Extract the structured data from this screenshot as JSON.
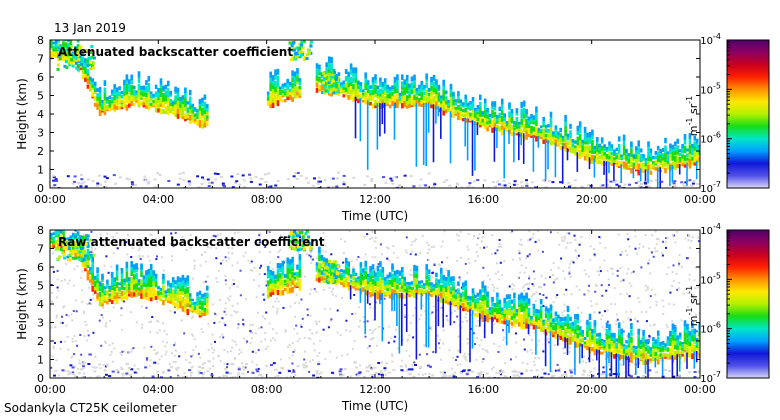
{
  "date": "13 Jan 2019",
  "footer": "Sodankyla CT25K ceilometer",
  "chart_data": [
    {
      "type": "heatmap",
      "title": "Attenuated backscatter coefficient",
      "xlabel": "Time (UTC)",
      "ylabel": "Height (km)",
      "xlim": [
        0,
        24
      ],
      "ylim": [
        0,
        8
      ],
      "xticks": [
        "00:00",
        "04:00",
        "08:00",
        "12:00",
        "16:00",
        "20:00",
        "00:00"
      ],
      "yticks": [
        "0",
        "1",
        "2",
        "3",
        "4",
        "5",
        "6",
        "7",
        "8"
      ],
      "colorbar": {
        "label": "m-1 sr-1",
        "min_exp": -7,
        "max_exp": -4,
        "ticks": [
          "10-7",
          "10-6",
          "10-5",
          "10-4"
        ]
      },
      "features": {
        "cloud_layer_base_km": [
          {
            "t": 0.2,
            "h": 7.2
          },
          {
            "t": 1.0,
            "h": 6.8
          },
          {
            "t": 1.8,
            "h": 4.1
          },
          {
            "t": 3.0,
            "h": 4.7
          },
          {
            "t": 4.5,
            "h": 4.2
          },
          {
            "t": 5.5,
            "h": 3.5
          },
          {
            "t": 10.0,
            "h": 5.5
          },
          {
            "t": 12.0,
            "h": 4.6
          },
          {
            "t": 14.0,
            "h": 4.6
          },
          {
            "t": 16.0,
            "h": 3.4
          },
          {
            "t": 18.0,
            "h": 2.8
          },
          {
            "t": 20.0,
            "h": 1.6
          },
          {
            "t": 22.0,
            "h": 1.0
          },
          {
            "t": 24.0,
            "h": 1.5
          }
        ],
        "noise_background": false
      }
    },
    {
      "type": "heatmap",
      "title": "Raw attenuated backscatter coefficient",
      "xlabel": "Time (UTC)",
      "ylabel": "Height (km)",
      "xlim": [
        0,
        24
      ],
      "ylim": [
        0,
        8
      ],
      "xticks": [
        "00:00",
        "04:00",
        "08:00",
        "12:00",
        "16:00",
        "20:00",
        "00:00"
      ],
      "yticks": [
        "0",
        "1",
        "2",
        "3",
        "4",
        "5",
        "6",
        "7",
        "8"
      ],
      "colorbar": {
        "label": "m-1 sr-1",
        "min_exp": -7,
        "max_exp": -4,
        "ticks": [
          "10-7",
          "10-6",
          "10-5",
          "10-4"
        ]
      },
      "features": {
        "cloud_layer_base_km": [
          {
            "t": 0.2,
            "h": 7.2
          },
          {
            "t": 1.0,
            "h": 6.8
          },
          {
            "t": 1.8,
            "h": 4.1
          },
          {
            "t": 3.0,
            "h": 4.7
          },
          {
            "t": 4.5,
            "h": 4.2
          },
          {
            "t": 5.5,
            "h": 3.5
          },
          {
            "t": 10.0,
            "h": 5.5
          },
          {
            "t": 12.0,
            "h": 4.6
          },
          {
            "t": 14.0,
            "h": 4.6
          },
          {
            "t": 16.0,
            "h": 3.4
          },
          {
            "t": 18.0,
            "h": 2.8
          },
          {
            "t": 20.0,
            "h": 1.6
          },
          {
            "t": 22.0,
            "h": 1.0
          },
          {
            "t": 24.0,
            "h": 1.5
          }
        ],
        "noise_background": true
      }
    }
  ],
  "colors": {
    "colormap": [
      "#d8d8f4",
      "#5050e8",
      "#1018d8",
      "#00a0ff",
      "#00e6c8",
      "#18dc18",
      "#b4f000",
      "#ffe800",
      "#ff9000",
      "#ff2000",
      "#c80020",
      "#8c0060",
      "#50006c"
    ],
    "noise": "#d8d8d8"
  }
}
